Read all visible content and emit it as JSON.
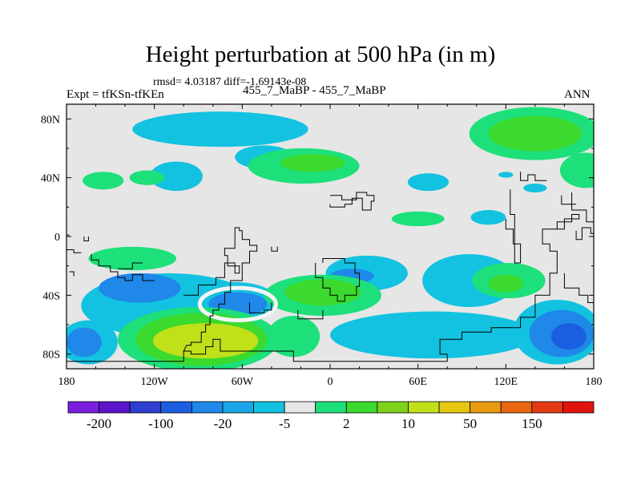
{
  "chart_data": {
    "type": "heatmap",
    "title": "Height perturbation at 500 hPa (in m)",
    "stats_text": "rmsd= 4.03187 diff=-1.69143e-08",
    "left_label": "Expt = tfKSn-tfKEn",
    "center_label": "455_7_MaBP - 455_7_MaBP",
    "right_label": "ANN",
    "x_range": [
      -180,
      180
    ],
    "y_range": [
      -90,
      90
    ],
    "x_ticks": [
      {
        "value": -180,
        "label": "180"
      },
      {
        "value": -120,
        "label": "120W"
      },
      {
        "value": -60,
        "label": "60W"
      },
      {
        "value": 0,
        "label": "0"
      },
      {
        "value": 60,
        "label": "60E"
      },
      {
        "value": 120,
        "label": "120E"
      },
      {
        "value": 180,
        "label": "180"
      }
    ],
    "y_ticks": [
      {
        "value": 80,
        "label": "80N"
      },
      {
        "value": 40,
        "label": "40N"
      },
      {
        "value": 0,
        "label": "0"
      },
      {
        "value": -40,
        "label": "40S"
      },
      {
        "value": -80,
        "label": "80S"
      }
    ],
    "colorbar": {
      "colors": [
        "#7a1fe0",
        "#5a16c8",
        "#2e3fd0",
        "#1a5fe0",
        "#1f88e8",
        "#1aa6e6",
        "#13c2e0",
        "#e6e6e6",
        "#1de07a",
        "#3cd92e",
        "#7fd21c",
        "#c0e01a",
        "#e6c812",
        "#ea9a10",
        "#e8660f",
        "#e23a12",
        "#e0140e"
      ],
      "labels": [
        {
          "after_bin": 1,
          "text": "-200"
        },
        {
          "after_bin": 3,
          "text": "-100"
        },
        {
          "after_bin": 5,
          "text": "-20"
        },
        {
          "after_bin": 7,
          "text": "-5"
        },
        {
          "after_bin": 9,
          "text": "2"
        },
        {
          "after_bin": 11,
          "text": "10"
        },
        {
          "after_bin": 13,
          "text": "50"
        },
        {
          "after_bin": 15,
          "text": "150"
        }
      ]
    },
    "regions": [
      {
        "level": "-5",
        "color": "#13c2e0",
        "cx": -75,
        "cy": 73,
        "rx": 60,
        "ry": 12
      },
      {
        "level": "-5",
        "color": "#13c2e0",
        "cx": -45,
        "cy": 54,
        "rx": 20,
        "ry": 8
      },
      {
        "level": "-5",
        "color": "#13c2e0",
        "cx": -105,
        "cy": 41,
        "rx": 18,
        "ry": 10
      },
      {
        "level": "-5",
        "color": "#13c2e0",
        "cx": 120,
        "cy": 42,
        "rx": 5,
        "ry": 2
      },
      {
        "level": "-5",
        "color": "#13c2e0",
        "cx": 140,
        "cy": 33,
        "rx": 8,
        "ry": 3
      },
      {
        "level": "-5",
        "color": "#13c2e0",
        "cx": 67,
        "cy": 37,
        "rx": 14,
        "ry": 6
      },
      {
        "level": "-5",
        "color": "#13c2e0",
        "cx": 108,
        "cy": 13,
        "rx": 12,
        "ry": 5
      },
      {
        "level": "-5",
        "color": "#13c2e0",
        "cx": 25,
        "cy": -25,
        "rx": 28,
        "ry": 12
      },
      {
        "level": "-5",
        "color": "#13c2e0",
        "cx": 95,
        "cy": -30,
        "rx": 32,
        "ry": 18
      },
      {
        "level": "-5",
        "color": "#13c2e0",
        "cx": -110,
        "cy": -47,
        "rx": 60,
        "ry": 22
      },
      {
        "level": "-5",
        "color": "#13c2e0",
        "cx": -65,
        "cy": -45,
        "rx": 30,
        "ry": 14
      },
      {
        "level": "-5",
        "color": "#13c2e0",
        "cx": 70,
        "cy": -67,
        "rx": 70,
        "ry": 16
      },
      {
        "level": "-5",
        "color": "#13c2e0",
        "cx": 155,
        "cy": -65,
        "rx": 30,
        "ry": 22
      },
      {
        "level": "-5",
        "color": "#13c2e0",
        "cx": -165,
        "cy": -72,
        "rx": 20,
        "ry": 15
      },
      {
        "level": "-20",
        "color": "#1f88e8",
        "cx": -130,
        "cy": -35,
        "rx": 28,
        "ry": 10
      },
      {
        "level": "-20",
        "color": "#1f88e8",
        "cx": -63,
        "cy": -46,
        "rx": 20,
        "ry": 8
      },
      {
        "level": "-20",
        "color": "#1f88e8",
        "cx": 158,
        "cy": -66,
        "rx": 22,
        "ry": 16
      },
      {
        "level": "-20",
        "color": "#1f88e8",
        "cx": -168,
        "cy": -72,
        "rx": 12,
        "ry": 10
      },
      {
        "level": "-20",
        "color": "#1f88e8",
        "cx": 15,
        "cy": -27,
        "rx": 15,
        "ry": 5
      },
      {
        "level": "-100",
        "color": "#1a5fe0",
        "cx": 163,
        "cy": -68,
        "rx": 12,
        "ry": 9
      },
      {
        "level": "2",
        "color": "#1de07a",
        "cx": -155,
        "cy": 38,
        "rx": 14,
        "ry": 6
      },
      {
        "level": "2",
        "color": "#1de07a",
        "cx": -125,
        "cy": 40,
        "rx": 12,
        "ry": 5
      },
      {
        "level": "2",
        "color": "#1de07a",
        "cx": -18,
        "cy": 48,
        "rx": 38,
        "ry": 12
      },
      {
        "level": "2",
        "color": "#1de07a",
        "cx": 140,
        "cy": 70,
        "rx": 45,
        "ry": 18
      },
      {
        "level": "2",
        "color": "#1de07a",
        "cx": 175,
        "cy": 45,
        "rx": 18,
        "ry": 12
      },
      {
        "level": "2",
        "color": "#1de07a",
        "cx": 60,
        "cy": 12,
        "rx": 18,
        "ry": 5
      },
      {
        "level": "2",
        "color": "#1de07a",
        "cx": -135,
        "cy": -15,
        "rx": 30,
        "ry": 8
      },
      {
        "level": "2",
        "color": "#1de07a",
        "cx": -5,
        "cy": -40,
        "rx": 40,
        "ry": 14
      },
      {
        "level": "2",
        "color": "#1de07a",
        "cx": 122,
        "cy": -30,
        "rx": 25,
        "ry": 12
      },
      {
        "level": "2",
        "color": "#1de07a",
        "cx": -90,
        "cy": -70,
        "rx": 55,
        "ry": 22
      },
      {
        "level": "2",
        "color": "#1de07a",
        "cx": -25,
        "cy": -68,
        "rx": 18,
        "ry": 14
      },
      {
        "level": "10",
        "color": "#3cd92e",
        "cx": 140,
        "cy": 70,
        "rx": 32,
        "ry": 12
      },
      {
        "level": "10",
        "color": "#3cd92e",
        "cx": -12,
        "cy": 50,
        "rx": 22,
        "ry": 6
      },
      {
        "level": "10",
        "color": "#3cd92e",
        "cx": -5,
        "cy": -38,
        "rx": 26,
        "ry": 9
      },
      {
        "level": "10",
        "color": "#3cd92e",
        "cx": 120,
        "cy": -32,
        "rx": 12,
        "ry": 6
      },
      {
        "level": "10",
        "color": "#3cd92e",
        "cx": -88,
        "cy": -70,
        "rx": 45,
        "ry": 18
      },
      {
        "level": "50",
        "color": "#c0e01a",
        "cx": -85,
        "cy": -71,
        "rx": 36,
        "ry": 12
      }
    ]
  }
}
